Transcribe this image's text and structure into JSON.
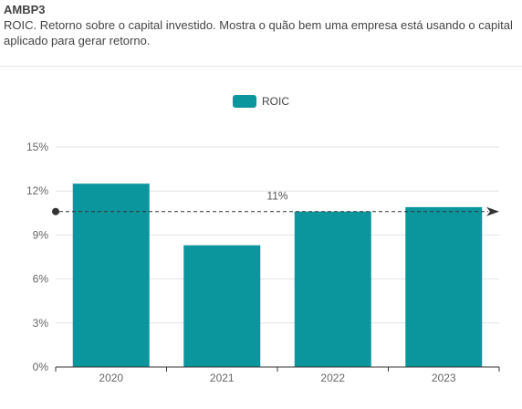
{
  "header": {
    "ticker": "AMBP3",
    "description": "ROIC. Retorno sobre o capital investido. Mostra o quão bem uma empresa está usando o capital aplicado para gerar retorno."
  },
  "chart_data": {
    "type": "bar",
    "categories": [
      "2020",
      "2021",
      "2022",
      "2023"
    ],
    "series": [
      {
        "name": "ROIC",
        "values": [
          12.5,
          8.3,
          10.6,
          10.9
        ],
        "color": "#0b959d"
      }
    ],
    "ylim": [
      0,
      15
    ],
    "yticks": [
      0,
      3,
      6,
      9,
      12,
      15
    ],
    "ytick_labels": [
      "0%",
      "3%",
      "6%",
      "9%",
      "12%",
      "15%"
    ],
    "grid": true,
    "legend_position": "top-center",
    "average_line": {
      "value": 10.6,
      "label": "11%",
      "style": "dashed-arrow"
    }
  }
}
